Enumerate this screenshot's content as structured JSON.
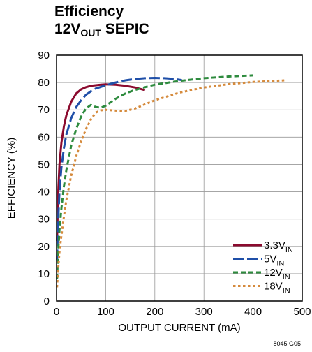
{
  "title_line1": "Efficiency",
  "title_line2_main": "12V",
  "title_line2_sub": "OUT",
  "title_line2_rest": " SEPIC",
  "footnote": "8045 G05",
  "chart_data": {
    "type": "line",
    "title": "Efficiency 12VOUT SEPIC",
    "xlabel": "OUTPUT CURRENT (mA)",
    "ylabel": "EFFICIENCY (%)",
    "xlim": [
      0,
      500
    ],
    "ylim": [
      0,
      90
    ],
    "xticks": [
      0,
      100,
      200,
      300,
      400,
      500
    ],
    "yticks": [
      0,
      10,
      20,
      30,
      40,
      50,
      60,
      70,
      80,
      90
    ],
    "grid": true,
    "legend_position": "bottom-right",
    "series": [
      {
        "name": "3.3V_IN",
        "label_main": "3.3V",
        "label_sub": "IN",
        "color": "#8b0a2e",
        "dash": "solid",
        "x": [
          1,
          3,
          6,
          10,
          15,
          20,
          30,
          40,
          50,
          60,
          70,
          80,
          90,
          100,
          120,
          140,
          160,
          180
        ],
        "y": [
          22,
          38,
          50,
          58,
          64,
          68,
          73,
          76,
          77.5,
          78.3,
          78.8,
          79,
          79.2,
          79.3,
          79.2,
          78.8,
          78.2,
          77.2
        ]
      },
      {
        "name": "5V_IN",
        "label_main": "5V",
        "label_sub": "IN",
        "color": "#1f4fa8",
        "dash": "long",
        "x": [
          1,
          3,
          6,
          10,
          15,
          20,
          30,
          40,
          50,
          60,
          70,
          80,
          90,
          100,
          120,
          140,
          160,
          180,
          200,
          220,
          240,
          255
        ],
        "y": [
          15,
          28,
          40,
          49,
          56,
          61,
          67,
          71,
          73.5,
          75.5,
          76.8,
          77.8,
          78.4,
          79,
          80,
          80.8,
          81.3,
          81.6,
          81.7,
          81.6,
          81.3,
          80.9
        ]
      },
      {
        "name": "12V_IN",
        "label_main": "12V",
        "label_sub": "IN",
        "color": "#2e8b3e",
        "dash": "medium",
        "x": [
          1,
          3,
          6,
          10,
          15,
          20,
          30,
          40,
          50,
          60,
          70,
          80,
          90,
          100,
          120,
          140,
          160,
          180,
          200,
          250,
          300,
          350,
          400
        ],
        "y": [
          8,
          17,
          26,
          34,
          42,
          48,
          57,
          63,
          67.5,
          70.5,
          71.8,
          71,
          70.8,
          71.5,
          74,
          76,
          77.3,
          78.3,
          79.2,
          80.6,
          81.6,
          82.2,
          82.6
        ]
      },
      {
        "name": "18V_IN",
        "label_main": "18V",
        "label_sub": "IN",
        "color": "#d58a3c",
        "dash": "dot",
        "x": [
          1,
          3,
          6,
          10,
          15,
          20,
          30,
          40,
          50,
          60,
          70,
          80,
          90,
          100,
          120,
          140,
          160,
          180,
          200,
          250,
          300,
          350,
          400,
          465
        ],
        "y": [
          5,
          11,
          18,
          24,
          31,
          37,
          46,
          53,
          58.5,
          63,
          66.5,
          69,
          69.8,
          70,
          69.7,
          69.6,
          70.5,
          72,
          73.5,
          76.3,
          78.2,
          79.4,
          80.2,
          80.8
        ]
      }
    ]
  }
}
